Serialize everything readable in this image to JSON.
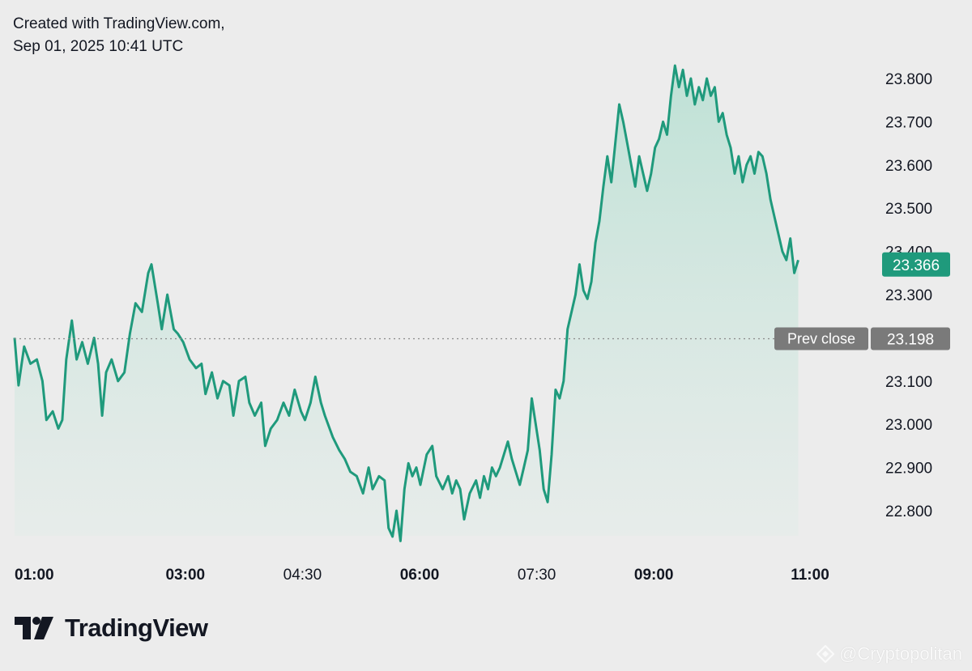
{
  "header": {
    "line1": "Created with TradingView.com,",
    "line2": "Sep 01, 2025 10:41 UTC"
  },
  "brand": {
    "name": "TradingView",
    "watermark": "@Cryptopolitan"
  },
  "colors": {
    "line": "#1f9a7c",
    "fill_top": "#b9e0d3",
    "background": "#ececec",
    "last_price_badge": "#1f9a7c",
    "prev_close_badge": "#7a7a7a"
  },
  "chart_data": {
    "type": "area",
    "x_ticks": [
      {
        "label": "01:00",
        "hour": 1.0,
        "bold": true
      },
      {
        "label": "03:00",
        "hour": 3.0,
        "bold": true
      },
      {
        "label": "04:30",
        "hour": 4.5,
        "bold": false
      },
      {
        "label": "06:00",
        "hour": 6.0,
        "bold": true
      },
      {
        "label": "07:30",
        "hour": 7.5,
        "bold": false
      },
      {
        "label": "09:00",
        "hour": 9.0,
        "bold": true
      },
      {
        "label": "11:00",
        "hour": 11.0,
        "bold": true
      }
    ],
    "y_ticks": [
      "22.800",
      "22.900",
      "23.000",
      "23.100",
      "23.300",
      "23.400",
      "23.500",
      "23.600",
      "23.700",
      "23.800"
    ],
    "ylim": [
      22.7,
      23.84
    ],
    "xlim": [
      1.0,
      11.6
    ],
    "last_price": {
      "value": 23.366,
      "label": "23.366"
    },
    "prev_close": {
      "value": 23.198,
      "label": "23.198",
      "text": "Prev close"
    },
    "series": [
      {
        "points": [
          [
            1.0,
            23.2
          ],
          [
            1.05,
            23.09
          ],
          [
            1.12,
            23.18
          ],
          [
            1.2,
            23.14
          ],
          [
            1.28,
            23.15
          ],
          [
            1.35,
            23.1
          ],
          [
            1.4,
            23.01
          ],
          [
            1.48,
            23.03
          ],
          [
            1.55,
            22.99
          ],
          [
            1.6,
            23.01
          ],
          [
            1.65,
            23.15
          ],
          [
            1.72,
            23.24
          ],
          [
            1.78,
            23.15
          ],
          [
            1.85,
            23.19
          ],
          [
            1.92,
            23.14
          ],
          [
            2.0,
            23.2
          ],
          [
            2.05,
            23.14
          ],
          [
            2.1,
            23.02
          ],
          [
            2.15,
            23.12
          ],
          [
            2.22,
            23.15
          ],
          [
            2.3,
            23.1
          ],
          [
            2.38,
            23.12
          ],
          [
            2.45,
            23.21
          ],
          [
            2.52,
            23.28
          ],
          [
            2.6,
            23.26
          ],
          [
            2.68,
            23.35
          ],
          [
            2.72,
            23.37
          ],
          [
            2.8,
            23.28
          ],
          [
            2.85,
            23.22
          ],
          [
            2.92,
            23.3
          ],
          [
            3.0,
            23.22
          ],
          [
            3.05,
            23.21
          ],
          [
            3.12,
            23.19
          ],
          [
            3.2,
            23.15
          ],
          [
            3.28,
            23.13
          ],
          [
            3.35,
            23.14
          ],
          [
            3.4,
            23.07
          ],
          [
            3.48,
            23.12
          ],
          [
            3.55,
            23.06
          ],
          [
            3.62,
            23.1
          ],
          [
            3.7,
            23.09
          ],
          [
            3.75,
            23.02
          ],
          [
            3.82,
            23.1
          ],
          [
            3.9,
            23.11
          ],
          [
            3.95,
            23.05
          ],
          [
            4.02,
            23.02
          ],
          [
            4.1,
            23.05
          ],
          [
            4.15,
            22.95
          ],
          [
            4.22,
            22.99
          ],
          [
            4.3,
            23.01
          ],
          [
            4.38,
            23.05
          ],
          [
            4.45,
            23.02
          ],
          [
            4.52,
            23.08
          ],
          [
            4.6,
            23.03
          ],
          [
            4.65,
            23.01
          ],
          [
            4.72,
            23.05
          ],
          [
            4.78,
            23.11
          ],
          [
            4.85,
            23.05
          ],
          [
            4.9,
            23.02
          ],
          [
            5.0,
            22.97
          ],
          [
            5.08,
            22.94
          ],
          [
            5.15,
            22.92
          ],
          [
            5.22,
            22.89
          ],
          [
            5.3,
            22.88
          ],
          [
            5.38,
            22.84
          ],
          [
            5.45,
            22.9
          ],
          [
            5.5,
            22.85
          ],
          [
            5.58,
            22.88
          ],
          [
            5.65,
            22.87
          ],
          [
            5.7,
            22.76
          ],
          [
            5.75,
            22.74
          ],
          [
            5.8,
            22.8
          ],
          [
            5.85,
            22.73
          ],
          [
            5.9,
            22.85
          ],
          [
            5.95,
            22.91
          ],
          [
            6.0,
            22.88
          ],
          [
            6.05,
            22.9
          ],
          [
            6.1,
            22.86
          ],
          [
            6.18,
            22.93
          ],
          [
            6.25,
            22.95
          ],
          [
            6.3,
            22.88
          ],
          [
            6.38,
            22.85
          ],
          [
            6.45,
            22.88
          ],
          [
            6.5,
            22.84
          ],
          [
            6.55,
            22.87
          ],
          [
            6.6,
            22.85
          ],
          [
            6.65,
            22.78
          ],
          [
            6.72,
            22.84
          ],
          [
            6.8,
            22.87
          ],
          [
            6.85,
            22.83
          ],
          [
            6.9,
            22.88
          ],
          [
            6.95,
            22.85
          ],
          [
            7.0,
            22.9
          ],
          [
            7.05,
            22.88
          ],
          [
            7.1,
            22.9
          ],
          [
            7.15,
            22.93
          ],
          [
            7.2,
            22.96
          ],
          [
            7.25,
            22.92
          ],
          [
            7.3,
            22.89
          ],
          [
            7.35,
            22.86
          ],
          [
            7.4,
            22.9
          ],
          [
            7.45,
            22.94
          ],
          [
            7.5,
            23.06
          ],
          [
            7.55,
            23.0
          ],
          [
            7.6,
            22.94
          ],
          [
            7.65,
            22.85
          ],
          [
            7.7,
            22.82
          ],
          [
            7.75,
            22.93
          ],
          [
            7.8,
            23.08
          ],
          [
            7.85,
            23.06
          ],
          [
            7.9,
            23.1
          ],
          [
            7.95,
            23.22
          ],
          [
            8.0,
            23.26
          ],
          [
            8.05,
            23.3
          ],
          [
            8.1,
            23.37
          ],
          [
            8.15,
            23.31
          ],
          [
            8.2,
            23.29
          ],
          [
            8.25,
            23.33
          ],
          [
            8.3,
            23.42
          ],
          [
            8.35,
            23.47
          ],
          [
            8.4,
            23.55
          ],
          [
            8.45,
            23.62
          ],
          [
            8.5,
            23.56
          ],
          [
            8.55,
            23.65
          ],
          [
            8.6,
            23.74
          ],
          [
            8.65,
            23.7
          ],
          [
            8.7,
            23.65
          ],
          [
            8.75,
            23.6
          ],
          [
            8.8,
            23.55
          ],
          [
            8.85,
            23.62
          ],
          [
            8.9,
            23.58
          ],
          [
            8.95,
            23.54
          ],
          [
            9.0,
            23.58
          ],
          [
            9.05,
            23.64
          ],
          [
            9.1,
            23.66
          ],
          [
            9.15,
            23.7
          ],
          [
            9.2,
            23.67
          ],
          [
            9.25,
            23.76
          ],
          [
            9.3,
            23.83
          ],
          [
            9.35,
            23.78
          ],
          [
            9.4,
            23.82
          ],
          [
            9.45,
            23.76
          ],
          [
            9.5,
            23.8
          ],
          [
            9.55,
            23.74
          ],
          [
            9.6,
            23.78
          ],
          [
            9.65,
            23.75
          ],
          [
            9.7,
            23.8
          ],
          [
            9.75,
            23.76
          ],
          [
            9.8,
            23.78
          ],
          [
            9.85,
            23.7
          ],
          [
            9.9,
            23.72
          ],
          [
            9.95,
            23.67
          ],
          [
            10.0,
            23.64
          ],
          [
            10.05,
            23.58
          ],
          [
            10.1,
            23.62
          ],
          [
            10.15,
            23.56
          ],
          [
            10.2,
            23.6
          ],
          [
            10.25,
            23.62
          ],
          [
            10.3,
            23.58
          ],
          [
            10.35,
            23.63
          ],
          [
            10.4,
            23.62
          ],
          [
            10.45,
            23.58
          ],
          [
            10.5,
            23.52
          ],
          [
            10.55,
            23.48
          ],
          [
            10.6,
            23.44
          ],
          [
            10.65,
            23.4
          ],
          [
            10.7,
            23.38
          ],
          [
            10.75,
            23.43
          ],
          [
            10.8,
            23.35
          ],
          [
            10.85,
            23.38
          ]
        ]
      }
    ]
  }
}
